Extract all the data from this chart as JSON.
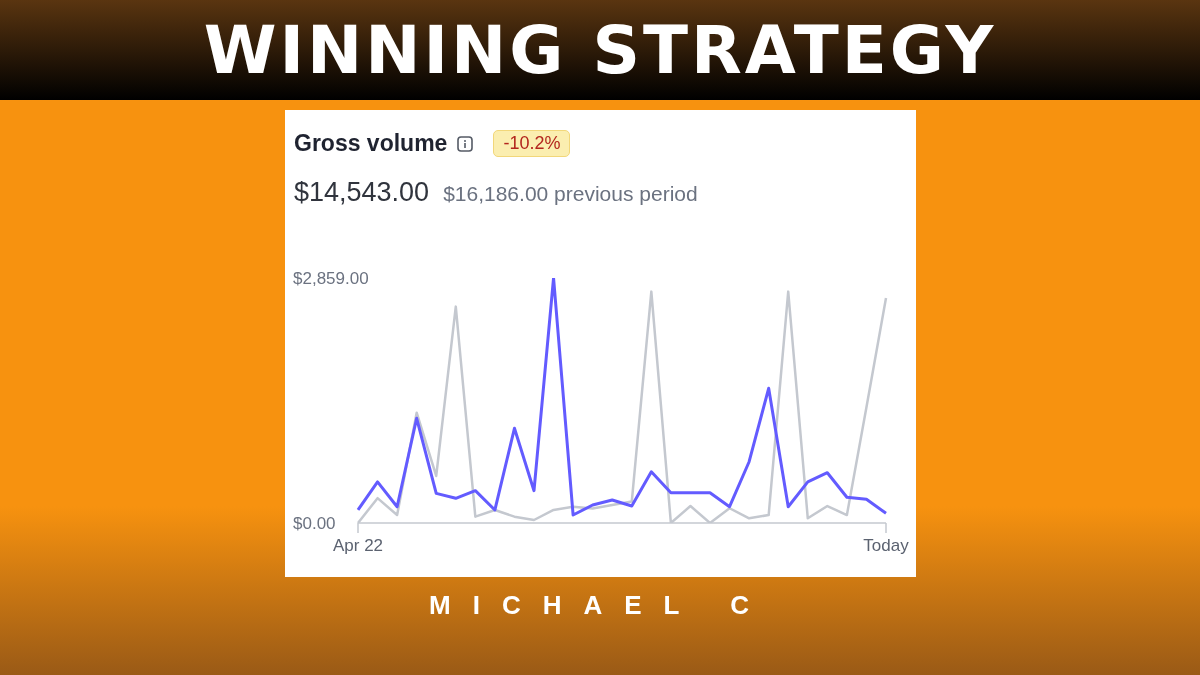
{
  "chart_data": {
    "type": "line",
    "title": "WINNING STRATEGY",
    "subtitle": "Gross volume",
    "annotations": [
      "-10.2%",
      "$14,543.00",
      "$16,186.00 previous period",
      "MICHAEL C"
    ],
    "categories": [
      "Apr 22",
      null,
      null,
      null,
      null,
      null,
      null,
      null,
      null,
      null,
      null,
      null,
      null,
      null,
      null,
      null,
      null,
      null,
      null,
      null,
      null,
      null,
      null,
      null,
      null,
      null,
      null,
      "Today"
    ],
    "series": [
      {
        "color": "#c4c8cf",
        "values": [
          0,
          290,
          93,
          1287,
          549,
          2525,
          74,
          152,
          74,
          35,
          152,
          190,
          170,
          210,
          250,
          2700,
          0,
          198,
          0,
          172,
          55,
          93,
          2700,
          55,
          198,
          93,
          1350,
          2625
        ]
      },
      {
        "color": "#635bff",
        "values": [
          152,
          480,
          190,
          1222,
          346,
          288,
          377,
          152,
          1105,
          377,
          2859,
          93,
          210,
          268,
          198,
          598,
          354,
          354,
          354,
          190,
          715,
          1572,
          190,
          480,
          587,
          300,
          277,
          113
        ]
      }
    ],
    "ylim": [
      0,
      2859
    ],
    "yticks": [
      {
        "value": 0,
        "label": "$0.00"
      },
      {
        "value": 2859,
        "label": "$2,859.00"
      }
    ],
    "grid": false,
    "legend": false,
    "marker": "none",
    "line_style": "solid"
  }
}
